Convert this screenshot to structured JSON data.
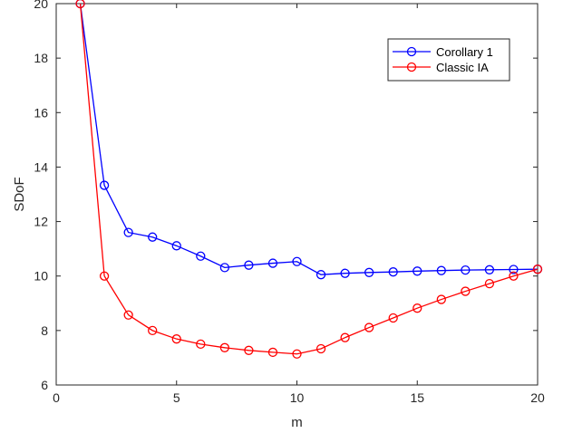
{
  "chart_data": {
    "type": "line",
    "title": "",
    "xlabel": "m",
    "ylabel": "SDoF",
    "xlim": [
      0,
      20
    ],
    "ylim": [
      6,
      20
    ],
    "xticks": [
      0,
      5,
      10,
      15,
      20
    ],
    "yticks": [
      6,
      8,
      10,
      12,
      14,
      16,
      18,
      20
    ],
    "grid": false,
    "legend_position": "top-right",
    "x": [
      1,
      2,
      3,
      4,
      5,
      6,
      7,
      8,
      9,
      10,
      11,
      12,
      13,
      14,
      15,
      16,
      17,
      18,
      19,
      20
    ],
    "series": [
      {
        "name": "Corollary 1",
        "color": "#0000ff",
        "marker": "circle",
        "values": [
          20,
          13.33,
          11.6,
          11.43,
          11.11,
          10.73,
          10.31,
          10.4,
          10.47,
          10.53,
          10.05,
          10.1,
          10.13,
          10.15,
          10.18,
          10.2,
          10.22,
          10.23,
          10.24,
          10.25
        ]
      },
      {
        "name": "Classic IA",
        "color": "#ff0000",
        "marker": "circle",
        "values": [
          20,
          10,
          8.57,
          8,
          7.69,
          7.5,
          7.37,
          7.27,
          7.2,
          7.14,
          7.33,
          7.74,
          8.11,
          8.46,
          8.82,
          9.14,
          9.44,
          9.72,
          10,
          10.25
        ]
      }
    ]
  }
}
